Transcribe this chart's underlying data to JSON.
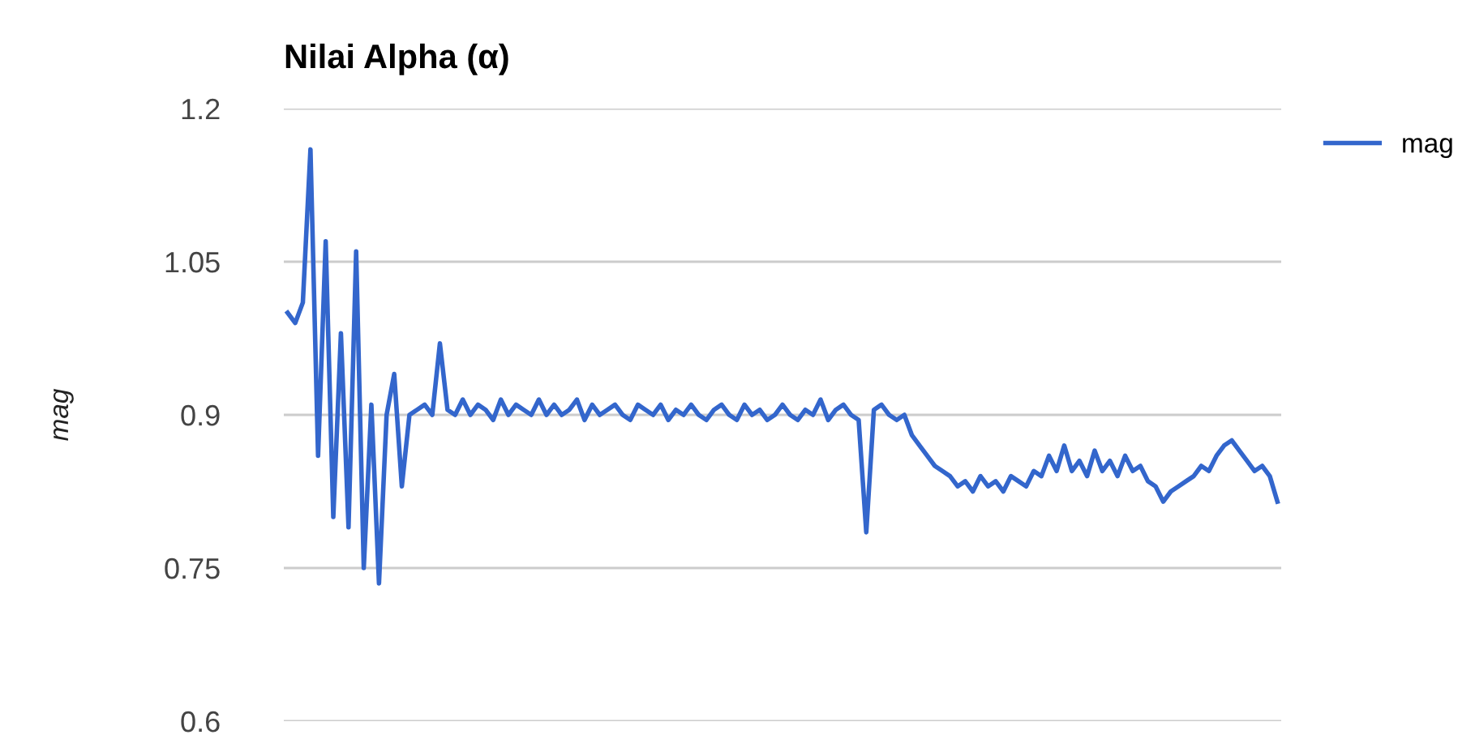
{
  "chart_data": {
    "type": "line",
    "title": "Nilai Alpha (α)",
    "ylabel": "mag",
    "ylim": [
      0.6,
      1.2
    ],
    "yticks": [
      0.6,
      0.75,
      0.9,
      1.05,
      1.2
    ],
    "grid": "y",
    "legend": "top right",
    "tick_labels": "y",
    "categories": [
      null,
      null,
      null,
      null,
      null,
      null,
      null,
      null,
      null,
      null,
      null,
      null,
      null,
      null,
      null,
      null,
      null,
      null,
      null,
      null,
      null,
      null,
      null,
      null,
      null,
      null,
      null,
      null,
      null,
      null,
      null,
      null,
      null,
      null,
      null,
      null,
      null,
      null,
      null,
      null,
      null,
      null,
      null,
      null,
      null,
      null,
      null,
      null,
      null,
      null,
      null,
      null,
      null,
      null,
      null,
      null,
      null,
      null,
      null,
      null,
      null,
      null,
      null,
      null,
      null,
      null,
      null,
      null,
      null,
      null,
      null,
      null,
      null,
      null,
      null,
      null,
      null,
      null,
      null,
      null,
      null,
      null,
      null,
      null,
      null,
      null,
      null,
      null,
      null,
      null,
      null,
      null,
      null,
      null,
      null,
      null,
      null,
      null,
      null,
      null,
      null,
      null,
      null,
      null,
      null,
      null,
      null,
      null,
      null,
      null,
      null,
      null,
      null,
      null,
      null,
      null,
      null,
      null,
      null,
      null,
      null,
      null,
      null,
      null,
      null,
      null,
      null,
      null,
      null,
      null,
      null
    ],
    "series": [
      {
        "name": "mag",
        "color": "#3366cc",
        "values": [
          1.0,
          0.99,
          1.01,
          1.16,
          0.86,
          1.07,
          0.8,
          0.98,
          0.79,
          1.06,
          0.75,
          0.91,
          0.735,
          0.9,
          0.94,
          0.83,
          0.9,
          0.905,
          0.91,
          0.9,
          0.97,
          0.905,
          0.9,
          0.915,
          0.9,
          0.91,
          0.905,
          0.895,
          0.915,
          0.9,
          0.91,
          0.905,
          0.9,
          0.915,
          0.9,
          0.91,
          0.9,
          0.905,
          0.915,
          0.895,
          0.91,
          0.9,
          0.905,
          0.91,
          0.9,
          0.895,
          0.91,
          0.905,
          0.9,
          0.91,
          0.895,
          0.905,
          0.9,
          0.91,
          0.9,
          0.895,
          0.905,
          0.91,
          0.9,
          0.895,
          0.91,
          0.9,
          0.905,
          0.895,
          0.9,
          0.91,
          0.9,
          0.895,
          0.905,
          0.9,
          0.915,
          0.895,
          0.905,
          0.91,
          0.9,
          0.895,
          0.785,
          0.905,
          0.91,
          0.9,
          0.895,
          0.9,
          0.88,
          0.87,
          0.86,
          0.85,
          0.845,
          0.84,
          0.83,
          0.835,
          0.825,
          0.84,
          0.83,
          0.835,
          0.825,
          0.84,
          0.835,
          0.83,
          0.845,
          0.84,
          0.86,
          0.845,
          0.87,
          0.845,
          0.855,
          0.84,
          0.865,
          0.845,
          0.855,
          0.84,
          0.86,
          0.845,
          0.85,
          0.835,
          0.83,
          0.815,
          0.825,
          0.83,
          0.835,
          0.84,
          0.85,
          0.845,
          0.86,
          0.87,
          0.875,
          0.865,
          0.855,
          0.845,
          0.85,
          0.84,
          0.815
        ]
      }
    ]
  }
}
